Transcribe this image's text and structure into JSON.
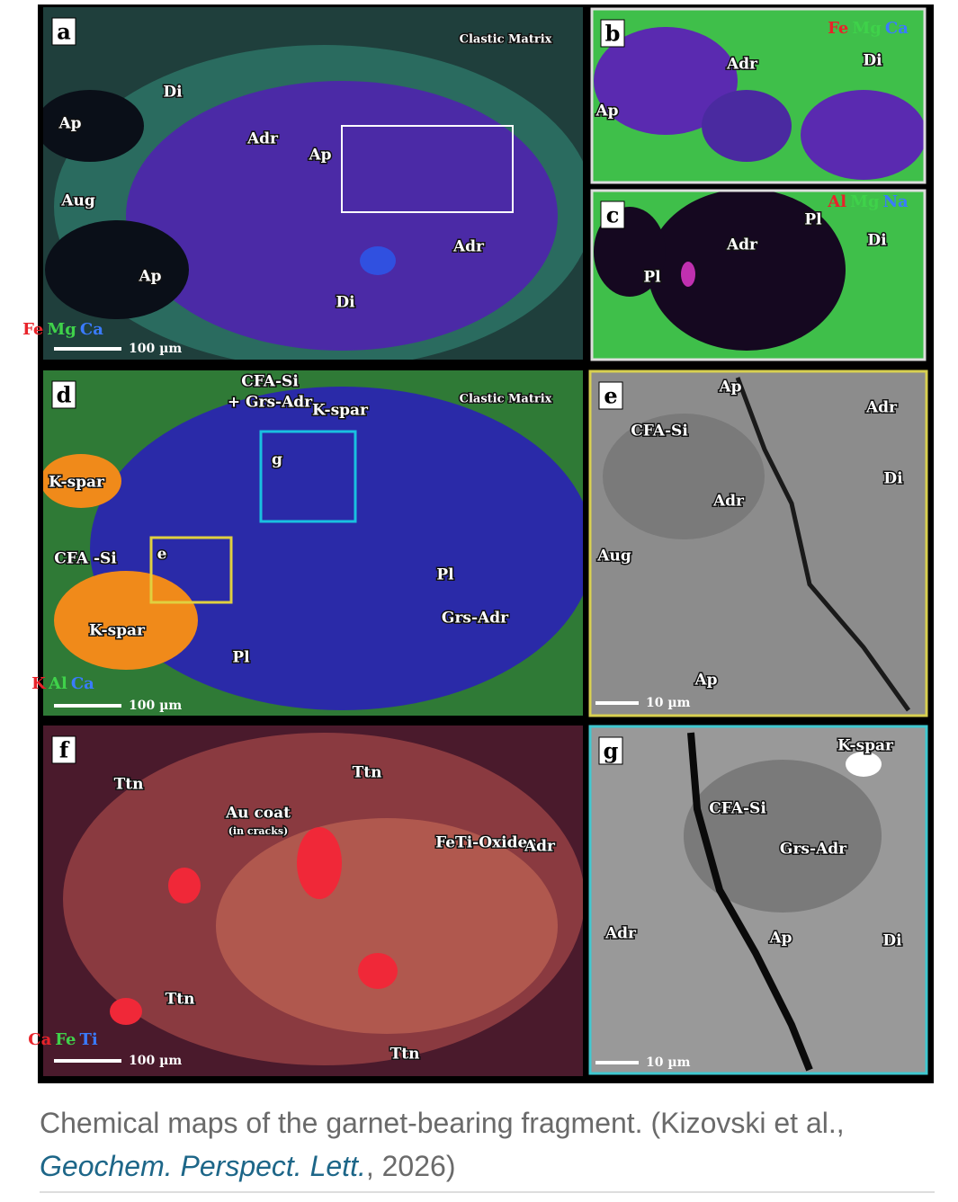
{
  "panels": [
    {
      "letter": "a",
      "labels": [
        "Clastic Matrix",
        "Di",
        "Ap",
        "Adr",
        "Ap",
        "Aug",
        "Adr",
        "Ap",
        "Di"
      ],
      "legend": [
        {
          "text": "Fe",
          "color": "#e8232a"
        },
        {
          "text": "Mg",
          "color": "#3fd24a"
        },
        {
          "text": "Ca",
          "color": "#3a7bff"
        }
      ],
      "scale": "100 µm"
    },
    {
      "letter": "b",
      "labels": [
        "Adr",
        "Di",
        "Ap"
      ],
      "legend": [
        {
          "text": "Fe",
          "color": "#e8232a"
        },
        {
          "text": "Mg",
          "color": "#3fd24a"
        },
        {
          "text": "Ca",
          "color": "#3a7bff"
        }
      ]
    },
    {
      "letter": "c",
      "labels": [
        "Pl",
        "Adr",
        "Di",
        "Pl"
      ],
      "legend": [
        {
          "text": "Al",
          "color": "#e8232a"
        },
        {
          "text": "Mg",
          "color": "#3fd24a"
        },
        {
          "text": "Na",
          "color": "#3a7bff"
        }
      ]
    },
    {
      "letter": "d",
      "labels": [
        "CFA-Si",
        "+ Grs-Adr",
        "K-spar",
        "Clastic Matrix",
        "g",
        "K-spar",
        "CFA -Si",
        "e",
        "Pl",
        "Grs-Adr",
        "K-spar",
        "Pl"
      ],
      "legend": [
        {
          "text": "K",
          "color": "#e8232a"
        },
        {
          "text": "Al",
          "color": "#3fd24a"
        },
        {
          "text": "Ca",
          "color": "#3a7bff"
        }
      ],
      "scale": "100 µm"
    },
    {
      "letter": "e",
      "labels": [
        "Ap",
        "Adr",
        "CFA-Si",
        "Di",
        "Adr",
        "Aug",
        "Ap"
      ],
      "scale": "10 µm"
    },
    {
      "letter": "f",
      "labels": [
        "Ttn",
        "Ttn",
        "Au coat",
        "(in cracks)",
        "FeTi-Oxides",
        "Adr",
        "Ttn",
        "Ttn"
      ],
      "legend": [
        {
          "text": "Ca",
          "color": "#e8232a"
        },
        {
          "text": "Fe",
          "color": "#3fd24a"
        },
        {
          "text": "Ti",
          "color": "#3a7bff"
        }
      ],
      "scale": "100 µm"
    },
    {
      "letter": "g",
      "labels": [
        "K-spar",
        "CFA-Si",
        "Grs-Adr",
        "Adr",
        "Ap",
        "Di"
      ],
      "scale": "10 µm"
    }
  ],
  "caption": {
    "text": "Chemical maps of the garnet-bearing fragment. (Kizovski et al., ",
    "journal": "Geochem. Perspect. Lett.",
    "end": ", 2026)"
  }
}
